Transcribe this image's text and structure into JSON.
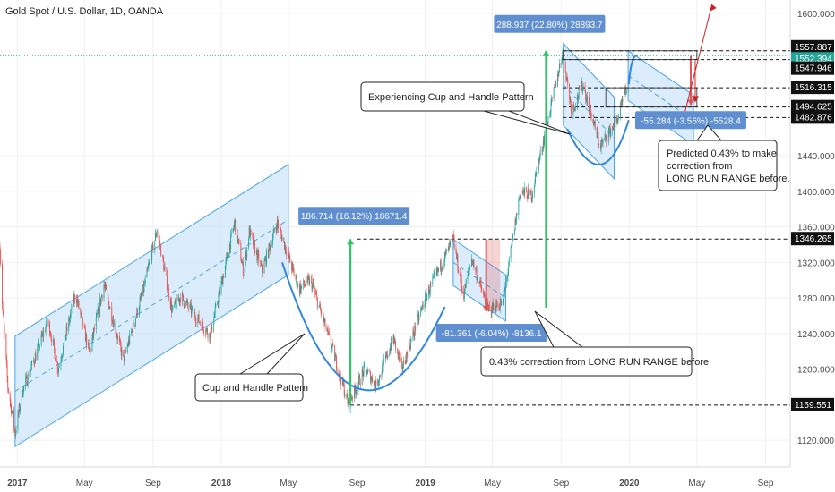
{
  "title": "Gold Spot / U.S. Dollar, 1D, OANDA",
  "colors": {
    "up": "#26a69a",
    "down": "#ef5350",
    "channel_fill": "#cfe6fb",
    "channel_line": "#4aa3e8",
    "curve": "#2e86de",
    "measure_fill": "#5f8fd1",
    "green_bar": "#22c55e",
    "red_bar": "#e05555",
    "dark_arrow": "#cc2222",
    "current_line": "#26a69a"
  },
  "chart_data": {
    "type": "candlestick",
    "title": "Gold Spot / U.S. Dollar, 1D, OANDA",
    "x_range": [
      "2016-12-01",
      "2020-10-15"
    ],
    "ylim": [
      1090,
      1615
    ],
    "y_ticks": [
      {
        "value": 1600,
        "label": "1600.000"
      },
      {
        "value": 1440,
        "label": "1440.000"
      },
      {
        "value": 1400,
        "label": "1400.000"
      },
      {
        "value": 1360,
        "label": "1360.000"
      },
      {
        "value": 1320,
        "label": "1320.000"
      },
      {
        "value": 1280,
        "label": "1280.000"
      },
      {
        "value": 1240,
        "label": "1240.000"
      },
      {
        "value": 1200,
        "label": "1200.000"
      },
      {
        "value": 1120,
        "label": "1120.000"
      }
    ],
    "x_ticks": [
      {
        "date": "2017-01-01",
        "label": "2017"
      },
      {
        "date": "2017-05-01",
        "label": "May"
      },
      {
        "date": "2017-09-01",
        "label": "Sep"
      },
      {
        "date": "2018-01-01",
        "label": "2018"
      },
      {
        "date": "2018-05-01",
        "label": "May"
      },
      {
        "date": "2018-09-01",
        "label": "Sep"
      },
      {
        "date": "2019-01-01",
        "label": "2019"
      },
      {
        "date": "2019-05-01",
        "label": "May"
      },
      {
        "date": "2019-09-01",
        "label": "Sep"
      },
      {
        "date": "2020-01-01",
        "label": "2020"
      },
      {
        "date": "2020-05-01",
        "label": "May"
      },
      {
        "date": "2020-09-01",
        "label": "Sep"
      }
    ],
    "price_path": [
      {
        "date": "2016-12-01",
        "price": 1338
      },
      {
        "date": "2016-12-05",
        "price": 1275
      },
      {
        "date": "2016-12-15",
        "price": 1180
      },
      {
        "date": "2016-12-28",
        "price": 1128
      },
      {
        "date": "2017-01-10",
        "price": 1175
      },
      {
        "date": "2017-01-25",
        "price": 1200
      },
      {
        "date": "2017-02-25",
        "price": 1255
      },
      {
        "date": "2017-03-15",
        "price": 1200
      },
      {
        "date": "2017-04-15",
        "price": 1285
      },
      {
        "date": "2017-05-10",
        "price": 1218
      },
      {
        "date": "2017-06-05",
        "price": 1295
      },
      {
        "date": "2017-07-10",
        "price": 1210
      },
      {
        "date": "2017-08-15",
        "price": 1290
      },
      {
        "date": "2017-09-08",
        "price": 1357
      },
      {
        "date": "2017-10-05",
        "price": 1265
      },
      {
        "date": "2017-10-20",
        "price": 1282
      },
      {
        "date": "2017-12-12",
        "price": 1238
      },
      {
        "date": "2018-01-25",
        "price": 1365
      },
      {
        "date": "2018-02-10",
        "price": 1308
      },
      {
        "date": "2018-02-20",
        "price": 1355
      },
      {
        "date": "2018-03-15",
        "price": 1310
      },
      {
        "date": "2018-04-11",
        "price": 1365
      },
      {
        "date": "2018-05-20",
        "price": 1290
      },
      {
        "date": "2018-06-10",
        "price": 1300
      },
      {
        "date": "2018-07-20",
        "price": 1220
      },
      {
        "date": "2018-08-16",
        "price": 1161
      },
      {
        "date": "2018-09-15",
        "price": 1200
      },
      {
        "date": "2018-10-05",
        "price": 1182
      },
      {
        "date": "2018-11-05",
        "price": 1235
      },
      {
        "date": "2018-11-20",
        "price": 1200
      },
      {
        "date": "2019-01-01",
        "price": 1280
      },
      {
        "date": "2019-02-20",
        "price": 1346
      },
      {
        "date": "2019-03-10",
        "price": 1282
      },
      {
        "date": "2019-03-25",
        "price": 1325
      },
      {
        "date": "2019-04-23",
        "price": 1266
      },
      {
        "date": "2019-05-20",
        "price": 1275
      },
      {
        "date": "2019-06-20",
        "price": 1400
      },
      {
        "date": "2019-07-10",
        "price": 1395
      },
      {
        "date": "2019-08-05",
        "price": 1470
      },
      {
        "date": "2019-09-04",
        "price": 1557
      },
      {
        "date": "2019-09-20",
        "price": 1490
      },
      {
        "date": "2019-10-10",
        "price": 1520
      },
      {
        "date": "2019-11-10",
        "price": 1450
      },
      {
        "date": "2019-12-10",
        "price": 1480
      },
      {
        "date": "2019-12-30",
        "price": 1520
      }
    ],
    "price_levels": [
      {
        "value": 1557.887,
        "label": "1557.887",
        "style": "dashed"
      },
      {
        "value": 1552.394,
        "label": "1552.394",
        "style": "current"
      },
      {
        "value": 1547.946,
        "label": "1547.946",
        "style": "dashed"
      },
      {
        "value": 1516.315,
        "label": "1516.315",
        "style": "dashed"
      },
      {
        "value": 1494.625,
        "label": "1494.625",
        "style": "dashed"
      },
      {
        "value": 1482.876,
        "label": "1482.876",
        "style": "dashed"
      },
      {
        "value": 1346.265,
        "label": "1346.265",
        "style": "dashed"
      },
      {
        "value": 1159.551,
        "label": "1159.551",
        "style": "dashed"
      }
    ],
    "measurements": [
      {
        "text": "186.714 (16.12%) 18671.4",
        "start_date": "2018-08-20",
        "from": 1159.551,
        "to": 1346.265,
        "color": "green"
      },
      {
        "text": "288.937 (22.80%) 28893.7",
        "start_date": "2019-08-05",
        "from": 1269,
        "to": 1557.887,
        "color": "green"
      },
      {
        "text": "-81.361 (-6.04%) -8136.1",
        "start_date": "2019-04-20",
        "from": 1346,
        "to": 1265,
        "color": "red"
      },
      {
        "text": "-55.284 (-3.56%) -5528.4",
        "start_date": "2020-04-20",
        "from": 1552,
        "to": 1497,
        "color": "red"
      }
    ],
    "annotations": [
      "Cup and Handle Pattern",
      "Experiencing Cup and Handle Pattern",
      "0.43% correction from LONG RUN RANGE before",
      "Predicted 0.43% to make correction from LONG RUN RANGE before."
    ]
  },
  "callouts": {
    "cup_handle": "Cup and Handle Pattern",
    "experiencing": "Experiencing Cup and Handle Pattern",
    "correction": "0.43% correction from LONG RUN RANGE before",
    "predicted_line1": "Predicted 0.43% to make",
    "predicted_line2": "correction from",
    "predicted_line3": "LONG RUN RANGE before."
  }
}
